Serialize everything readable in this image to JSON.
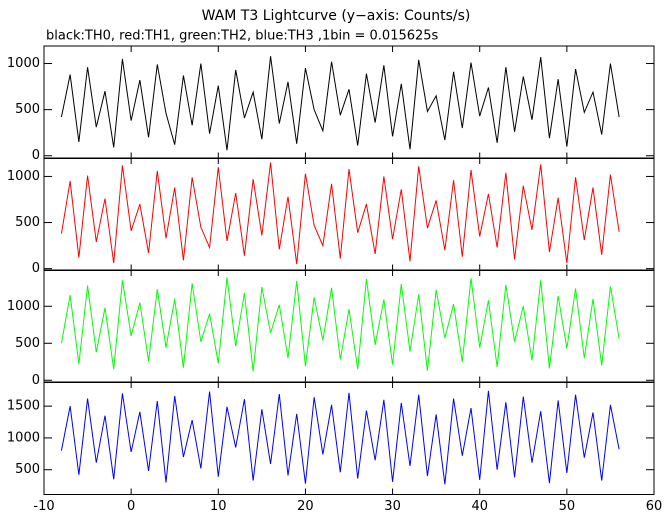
{
  "chart_data": [
    {
      "type": "line",
      "title": "WAM T3 Lightcurve (y−axis: Counts/s)",
      "subtitle": "black:TH0, red:TH1, green:TH2, blue:TH3 ,1bin = 0.015625s",
      "x": [
        -8,
        -7,
        -6,
        -5,
        -4,
        -3,
        -2,
        -1,
        0,
        1,
        2,
        3,
        4,
        5,
        6,
        7,
        8,
        9,
        10,
        11,
        12,
        13,
        14,
        15,
        16,
        17,
        18,
        19,
        20,
        21,
        22,
        23,
        24,
        25,
        26,
        27,
        28,
        29,
        30,
        31,
        32,
        33,
        34,
        35,
        36,
        37,
        38,
        39,
        40,
        41,
        42,
        43,
        44,
        45,
        46,
        47,
        48,
        49,
        50,
        51,
        52,
        53,
        54,
        55,
        56
      ],
      "series": [
        {
          "color": "#000000",
          "values": [
            420,
            880,
            150,
            960,
            310,
            700,
            90,
            1050,
            380,
            820,
            200,
            990,
            460,
            120,
            870,
            330,
            1000,
            240,
            760,
            60,
            930,
            410,
            690,
            180,
            1080,
            350,
            800,
            130,
            950,
            500,
            270,
            1020,
            440,
            720,
            110,
            890,
            360,
            980,
            210,
            780,
            70,
            1040,
            480,
            650,
            170,
            910,
            300,
            1010,
            430,
            740,
            140,
            960,
            260,
            860,
            390,
            1070,
            190,
            830,
            100,
            940,
            470,
            690,
            230,
            1000,
            420
          ]
        }
      ],
      "xlim": [
        -10,
        60
      ],
      "xticks": [
        -10,
        0,
        10,
        20,
        30,
        40,
        50,
        60
      ],
      "xtick_labels": false,
      "ylim": [
        -30,
        1190
      ],
      "yticks": [
        0,
        500,
        1000
      ]
    },
    {
      "type": "line",
      "x": [
        -8,
        -7,
        -6,
        -5,
        -4,
        -3,
        -2,
        -1,
        0,
        1,
        2,
        3,
        4,
        5,
        6,
        7,
        8,
        9,
        10,
        11,
        12,
        13,
        14,
        15,
        16,
        17,
        18,
        19,
        20,
        21,
        22,
        23,
        24,
        25,
        26,
        27,
        28,
        29,
        30,
        31,
        32,
        33,
        34,
        35,
        36,
        37,
        38,
        39,
        40,
        41,
        42,
        43,
        44,
        45,
        46,
        47,
        48,
        49,
        50,
        51,
        52,
        53,
        54,
        55,
        56
      ],
      "series": [
        {
          "color": "#ff0000",
          "values": [
            380,
            950,
            120,
            1010,
            290,
            760,
            60,
            1120,
            410,
            700,
            170,
            1060,
            330,
            880,
            90,
            990,
            450,
            230,
            1100,
            300,
            820,
            140,
            970,
            360,
            1150,
            210,
            780,
            50,
            1030,
            470,
            250,
            920,
            110,
            1080,
            390,
            700,
            160,
            1000,
            320,
            860,
            80,
            1110,
            440,
            740,
            200,
            960,
            130,
            1070,
            350,
            810,
            230,
            1040,
            100,
            900,
            420,
            1130,
            180,
            770,
            60,
            990,
            310,
            880,
            150,
            1020,
            400
          ]
        }
      ],
      "xlim": [
        -10,
        60
      ],
      "xticks": [
        -10,
        0,
        10,
        20,
        30,
        40,
        50,
        60
      ],
      "xtick_labels": false,
      "ylim": [
        -20,
        1200
      ],
      "yticks": [
        0,
        500,
        1000
      ]
    },
    {
      "type": "line",
      "x": [
        -8,
        -7,
        -6,
        -5,
        -4,
        -3,
        -2,
        -1,
        0,
        1,
        2,
        3,
        4,
        5,
        6,
        7,
        8,
        9,
        10,
        11,
        12,
        13,
        14,
        15,
        16,
        17,
        18,
        19,
        20,
        21,
        22,
        23,
        24,
        25,
        26,
        27,
        28,
        29,
        30,
        31,
        32,
        33,
        34,
        35,
        36,
        37,
        38,
        39,
        40,
        41,
        42,
        43,
        44,
        45,
        46,
        47,
        48,
        49,
        50,
        51,
        52,
        53,
        54,
        55,
        56
      ],
      "series": [
        {
          "color": "#00ff00",
          "values": [
            500,
            1150,
            220,
            1280,
            380,
            980,
            150,
            1350,
            600,
            1050,
            260,
            1230,
            440,
            1100,
            170,
            1310,
            520,
            900,
            230,
            1390,
            460,
            1180,
            120,
            1260,
            640,
            1020,
            300,
            1340,
            190,
            1120,
            540,
            1250,
            280,
            960,
            150,
            1370,
            480,
            1090,
            210,
            1300,
            390,
            1160,
            130,
            1220,
            570,
            1030,
            250,
            1380,
            440,
            1080,
            180,
            1290,
            520,
            1000,
            270,
            1350,
            160,
            1140,
            430,
            1240,
            300,
            1100,
            200,
            1270,
            560
          ]
        }
      ],
      "xlim": [
        -10,
        60
      ],
      "xticks": [
        -10,
        0,
        10,
        20,
        30,
        40,
        50,
        60
      ],
      "xtick_labels": false,
      "ylim": [
        -30,
        1490
      ],
      "yticks": [
        0,
        500,
        1000
      ]
    },
    {
      "type": "line",
      "x": [
        -8,
        -7,
        -6,
        -5,
        -4,
        -3,
        -2,
        -1,
        0,
        1,
        2,
        3,
        4,
        5,
        6,
        7,
        8,
        9,
        10,
        11,
        12,
        13,
        14,
        15,
        16,
        17,
        18,
        19,
        20,
        21,
        22,
        23,
        24,
        25,
        26,
        27,
        28,
        29,
        30,
        31,
        32,
        33,
        34,
        35,
        36,
        37,
        38,
        39,
        40,
        41,
        42,
        43,
        44,
        45,
        46,
        47,
        48,
        49,
        50,
        51,
        52,
        53,
        54,
        55,
        56
      ],
      "series": [
        {
          "color": "#0000ff",
          "values": [
            800,
            1500,
            420,
            1620,
            610,
            1350,
            350,
            1700,
            780,
            1410,
            480,
            1580,
            300,
            1660,
            700,
            1280,
            520,
            1730,
            390,
            1490,
            850,
            1610,
            330,
            1450,
            590,
            1690,
            410,
            1380,
            280,
            1640,
            740,
            1520,
            460,
            1710,
            360,
            1430,
            650,
            1600,
            310,
            1550,
            560,
            1680,
            400,
            1370,
            270,
            1620,
            720,
            1470,
            340,
            1740,
            500,
            1560,
            380,
            1650,
            610,
            1420,
            290,
            1590,
            450,
            1680,
            690,
            1400,
            330,
            1520,
            820
          ]
        }
      ],
      "xlim": [
        -10,
        60
      ],
      "xticks": [
        -10,
        0,
        10,
        20,
        30,
        40,
        50,
        60
      ],
      "xtick_labels": true,
      "ylim": [
        110,
        1880
      ],
      "yticks": [
        500,
        1000,
        1500
      ]
    }
  ]
}
